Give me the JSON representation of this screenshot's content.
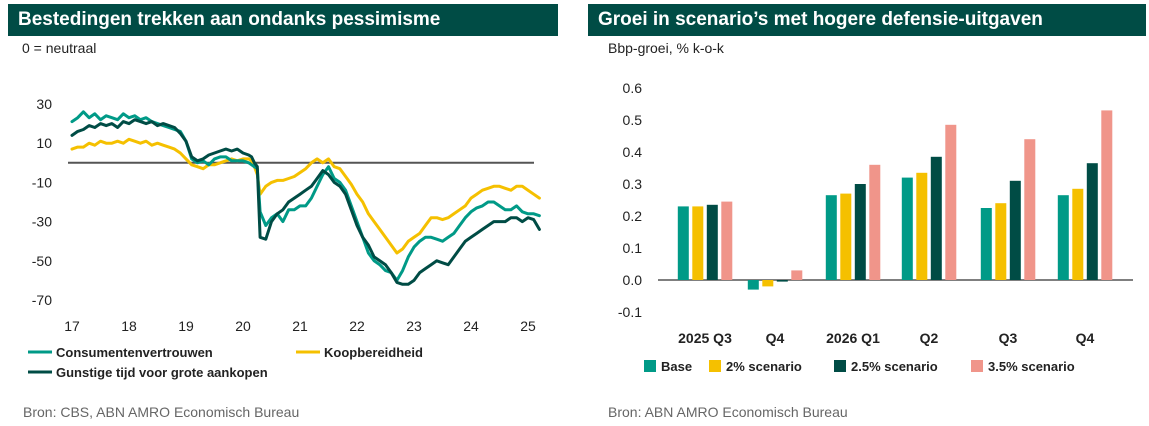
{
  "left": {
    "title": "Bestedingen trekken aan ondanks pessimisme",
    "subtitle": "0 = neutraal",
    "source": "Bron: CBS, ABN AMRO Economisch Bureau"
  },
  "right": {
    "title": "Groei in scenario’s met hogere defensie-uitgaven",
    "subtitle": "Bbp-groei, % k-o-k",
    "source": "Bron: ABN AMRO Economisch Bureau"
  },
  "colors": {
    "banner": "#004c45",
    "teal": "#009a87",
    "yellow": "#f5c000",
    "darkgreen": "#004c45",
    "salmon": "#f0958a",
    "zero_line": "#555555"
  },
  "chart_data": [
    {
      "type": "line",
      "title": "Bestedingen trekken aan ondanks pessimisme",
      "ylabel": "0 = neutraal",
      "xlim": [
        2017,
        2025.25
      ],
      "ylim": [
        -75,
        35
      ],
      "yticks": [
        30,
        10,
        -10,
        -30,
        -50,
        -70
      ],
      "xticks": [
        {
          "value": 2017,
          "label": "17"
        },
        {
          "value": 2018,
          "label": "18"
        },
        {
          "value": 2019,
          "label": "19"
        },
        {
          "value": 2020,
          "label": "20"
        },
        {
          "value": 2021,
          "label": "21"
        },
        {
          "value": 2022,
          "label": "22"
        },
        {
          "value": 2023,
          "label": "23"
        },
        {
          "value": 2024,
          "label": "24"
        },
        {
          "value": 2025,
          "label": "25"
        }
      ],
      "legend": "bottom",
      "series": [
        {
          "name": "Consumentenvertrouwen",
          "color": "#009a87",
          "x": [
            2017.0,
            2017.1,
            2017.2,
            2017.3,
            2017.4,
            2017.5,
            2017.6,
            2017.7,
            2017.8,
            2017.9,
            2018.0,
            2018.1,
            2018.2,
            2018.3,
            2018.4,
            2018.5,
            2018.6,
            2018.7,
            2018.8,
            2018.9,
            2019.0,
            2019.1,
            2019.2,
            2019.3,
            2019.4,
            2019.5,
            2019.6,
            2019.7,
            2019.8,
            2019.9,
            2020.0,
            2020.1,
            2020.15,
            2020.2,
            2020.25,
            2020.3,
            2020.4,
            2020.5,
            2020.6,
            2020.7,
            2020.8,
            2020.9,
            2021.0,
            2021.1,
            2021.2,
            2021.3,
            2021.4,
            2021.5,
            2021.6,
            2021.7,
            2021.8,
            2021.9,
            2022.0,
            2022.1,
            2022.2,
            2022.3,
            2022.4,
            2022.5,
            2022.6,
            2022.7,
            2022.8,
            2022.9,
            2023.0,
            2023.1,
            2023.2,
            2023.3,
            2023.4,
            2023.5,
            2023.6,
            2023.7,
            2023.8,
            2023.9,
            2024.0,
            2024.1,
            2024.2,
            2024.3,
            2024.4,
            2024.5,
            2024.6,
            2024.7,
            2024.8,
            2024.9,
            2025.0,
            2025.1,
            2025.2
          ],
          "y": [
            21,
            23,
            26,
            23,
            25,
            22,
            24,
            23,
            22,
            25,
            23,
            24,
            22,
            23,
            21,
            20,
            19,
            18,
            17,
            16,
            11,
            2,
            0,
            1,
            -1,
            2,
            3,
            3,
            1,
            1,
            1,
            0,
            -1,
            -2,
            -3,
            -25,
            -32,
            -28,
            -26,
            -30,
            -24,
            -24,
            -22,
            -22,
            -18,
            -12,
            -6,
            -2,
            -8,
            -10,
            -14,
            -22,
            -30,
            -38,
            -46,
            -50,
            -52,
            -55,
            -56,
            -60,
            -55,
            -48,
            -43,
            -40,
            -38,
            -38,
            -39,
            -40,
            -38,
            -36,
            -32,
            -28,
            -25,
            -23,
            -22,
            -20,
            -20,
            -22,
            -24,
            -24,
            -22,
            -25,
            -26,
            -26,
            -27
          ]
        },
        {
          "name": "Koopbereidheid",
          "color": "#f5c000",
          "x": [
            2017.0,
            2017.1,
            2017.2,
            2017.3,
            2017.4,
            2017.5,
            2017.6,
            2017.7,
            2017.8,
            2017.9,
            2018.0,
            2018.1,
            2018.2,
            2018.3,
            2018.4,
            2018.5,
            2018.6,
            2018.7,
            2018.8,
            2018.9,
            2019.0,
            2019.1,
            2019.2,
            2019.3,
            2019.4,
            2019.5,
            2019.6,
            2019.7,
            2019.8,
            2019.9,
            2020.0,
            2020.1,
            2020.15,
            2020.2,
            2020.25,
            2020.3,
            2020.4,
            2020.5,
            2020.6,
            2020.7,
            2020.8,
            2020.9,
            2021.0,
            2021.1,
            2021.2,
            2021.3,
            2021.4,
            2021.5,
            2021.6,
            2021.7,
            2021.8,
            2021.9,
            2022.0,
            2022.1,
            2022.2,
            2022.3,
            2022.4,
            2022.5,
            2022.6,
            2022.7,
            2022.8,
            2022.9,
            2023.0,
            2023.1,
            2023.2,
            2023.3,
            2023.4,
            2023.5,
            2023.6,
            2023.7,
            2023.8,
            2023.9,
            2024.0,
            2024.1,
            2024.2,
            2024.3,
            2024.4,
            2024.5,
            2024.6,
            2024.7,
            2024.8,
            2024.9,
            2025.0,
            2025.1,
            2025.2
          ],
          "y": [
            7,
            8,
            8,
            10,
            9,
            11,
            10,
            10,
            11,
            10,
            12,
            11,
            10,
            11,
            9,
            10,
            9,
            8,
            7,
            5,
            2,
            -1,
            -2,
            -3,
            -1,
            -1,
            0,
            1,
            2,
            1,
            2,
            2,
            1,
            -2,
            -6,
            -16,
            -12,
            -10,
            -9,
            -9,
            -8,
            -7,
            -5,
            -3,
            0,
            2,
            0,
            2,
            -2,
            -3,
            -7,
            -11,
            -16,
            -20,
            -26,
            -30,
            -34,
            -38,
            -42,
            -46,
            -44,
            -40,
            -38,
            -36,
            -32,
            -28,
            -28,
            -29,
            -28,
            -26,
            -24,
            -22,
            -18,
            -16,
            -14,
            -13,
            -12,
            -12,
            -13,
            -14,
            -12,
            -12,
            -14,
            -16,
            -18
          ]
        },
        {
          "name": "Gunstige tijd voor grote aankopen",
          "color": "#004c45",
          "x": [
            2017.0,
            2017.1,
            2017.2,
            2017.3,
            2017.4,
            2017.5,
            2017.6,
            2017.7,
            2017.8,
            2017.9,
            2018.0,
            2018.1,
            2018.2,
            2018.3,
            2018.4,
            2018.5,
            2018.6,
            2018.7,
            2018.8,
            2018.9,
            2019.0,
            2019.1,
            2019.2,
            2019.3,
            2019.4,
            2019.5,
            2019.6,
            2019.7,
            2019.8,
            2019.9,
            2020.0,
            2020.1,
            2020.15,
            2020.2,
            2020.25,
            2020.3,
            2020.4,
            2020.5,
            2020.6,
            2020.7,
            2020.8,
            2020.9,
            2021.0,
            2021.1,
            2021.2,
            2021.3,
            2021.4,
            2021.5,
            2021.6,
            2021.7,
            2021.8,
            2021.9,
            2022.0,
            2022.1,
            2022.2,
            2022.3,
            2022.4,
            2022.5,
            2022.6,
            2022.7,
            2022.8,
            2022.9,
            2023.0,
            2023.1,
            2023.2,
            2023.3,
            2023.4,
            2023.5,
            2023.6,
            2023.7,
            2023.8,
            2023.9,
            2024.0,
            2024.1,
            2024.2,
            2024.3,
            2024.4,
            2024.5,
            2024.6,
            2024.7,
            2024.8,
            2024.9,
            2025.0,
            2025.1,
            2025.2
          ],
          "y": [
            14,
            16,
            17,
            19,
            18,
            20,
            19,
            20,
            18,
            21,
            20,
            22,
            21,
            20,
            21,
            19,
            20,
            19,
            18,
            15,
            11,
            3,
            1,
            2,
            4,
            5,
            6,
            7,
            6,
            7,
            5,
            4,
            3,
            0,
            -2,
            -38,
            -39,
            -30,
            -26,
            -24,
            -20,
            -18,
            -16,
            -14,
            -12,
            -8,
            -4,
            -6,
            -10,
            -12,
            -16,
            -24,
            -32,
            -38,
            -42,
            -48,
            -50,
            -52,
            -56,
            -61,
            -62,
            -62,
            -60,
            -56,
            -54,
            -52,
            -50,
            -51,
            -52,
            -48,
            -44,
            -40,
            -38,
            -36,
            -34,
            -32,
            -30,
            -30,
            -30,
            -28,
            -28,
            -30,
            -28,
            -29,
            -34
          ]
        }
      ]
    },
    {
      "type": "bar",
      "title": "Groei in scenario’s met hogere defensie-uitgaven",
      "ylabel": "Bbp-groei, % k-o-k",
      "ylim": [
        -0.1,
        0.6
      ],
      "yticks": [
        0.6,
        0.5,
        0.4,
        0.3,
        0.2,
        0.1,
        0.0,
        -0.1
      ],
      "ytick_labels": [
        "0.6",
        "0.5",
        "0.4",
        "0.3",
        "0.2",
        "0.1",
        "0.0",
        "-0.1"
      ],
      "categories": [
        "2025 Q3",
        "Q4",
        "2026 Q1",
        "Q2",
        "Q3",
        "Q4"
      ],
      "legend": "bottom",
      "series": [
        {
          "name": "Base",
          "color": "#009a87",
          "values": [
            0.23,
            -0.03,
            0.265,
            0.32,
            0.225,
            0.265
          ]
        },
        {
          "name": "2% scenario",
          "color": "#f5c000",
          "values": [
            0.23,
            -0.02,
            0.27,
            0.335,
            0.24,
            0.285
          ]
        },
        {
          "name": "2.5% scenario",
          "color": "#004c45",
          "values": [
            0.235,
            -0.005,
            0.3,
            0.385,
            0.31,
            0.365
          ]
        },
        {
          "name": "3.5% scenario",
          "color": "#f0958a",
          "values": [
            0.245,
            0.03,
            0.36,
            0.485,
            0.44,
            0.53
          ]
        }
      ]
    }
  ]
}
